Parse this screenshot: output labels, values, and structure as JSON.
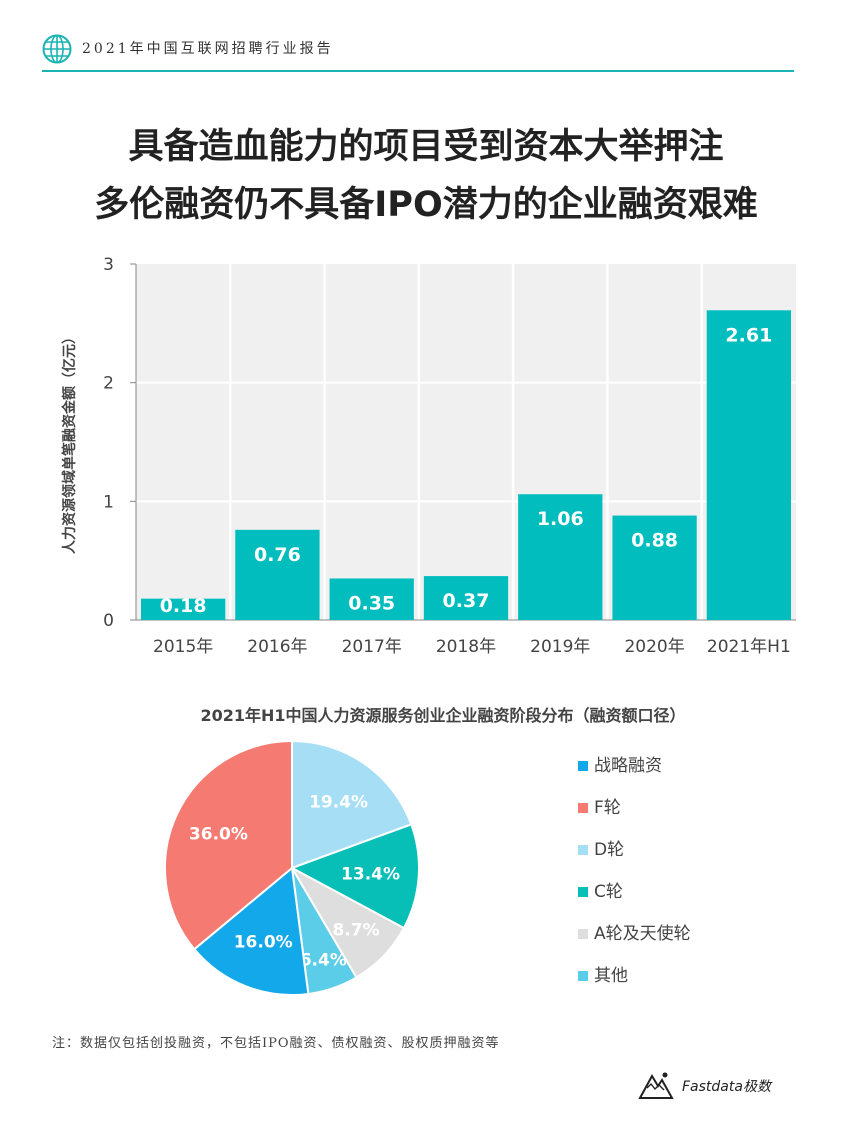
{
  "header": {
    "text": "2021年中国互联网招聘行业报告"
  },
  "title": {
    "line1": "具备造血能力的项目受到资本大举押注",
    "line2": "多伦融资仍不具备IPO潜力的企业融资艰难"
  },
  "colors": {
    "accent": "#02bdbd",
    "header_line": "#1ab3b3",
    "plot_bg": "#f0f0f0"
  },
  "chart_data": [
    {
      "type": "bar",
      "title": "",
      "xlabel": "",
      "ylabel": "人力资源领域单笔融资金额（亿元）",
      "categories": [
        "2015年",
        "2016年",
        "2017年",
        "2018年",
        "2019年",
        "2020年",
        "2021年H1"
      ],
      "values": [
        0.18,
        0.76,
        0.35,
        0.37,
        1.06,
        0.88,
        2.61
      ],
      "data_labels": [
        "0.18",
        "0.76",
        "0.35",
        "0.37",
        "1.06",
        "0.88",
        "2.61"
      ],
      "ylim": [
        0,
        3
      ],
      "yticks": [
        "0",
        "1",
        "2",
        "3"
      ],
      "grid": true,
      "color": "#02bdbd"
    },
    {
      "type": "pie",
      "title": "2021年H1中国人力资源服务创业企业融资阶段分布（融资额口径）",
      "slices": [
        {
          "label": "战略融资",
          "value": 16.0,
          "text": "16.0%",
          "color": "#12a8ea"
        },
        {
          "label": "F轮",
          "value": 36.0,
          "text": "36.0%",
          "color": "#f57a72"
        },
        {
          "label": "D轮",
          "value": 19.4,
          "text": "19.4%",
          "color": "#a6dff5"
        },
        {
          "label": "C轮",
          "value": 13.4,
          "text": "13.4%",
          "color": "#08bfb8"
        },
        {
          "label": "A轮及天使轮",
          "value": 8.7,
          "text": "8.7%",
          "color": "#dedede"
        },
        {
          "label": "其他",
          "value": 6.4,
          "text": "6.4%",
          "color": "#5ccde8"
        }
      ],
      "legend_position": "right"
    }
  ],
  "note": "注：数据仅包括创投融资，不包括IPO融资、债权融资、股权质押融资等",
  "brand": {
    "name": "Fastdata极数"
  }
}
